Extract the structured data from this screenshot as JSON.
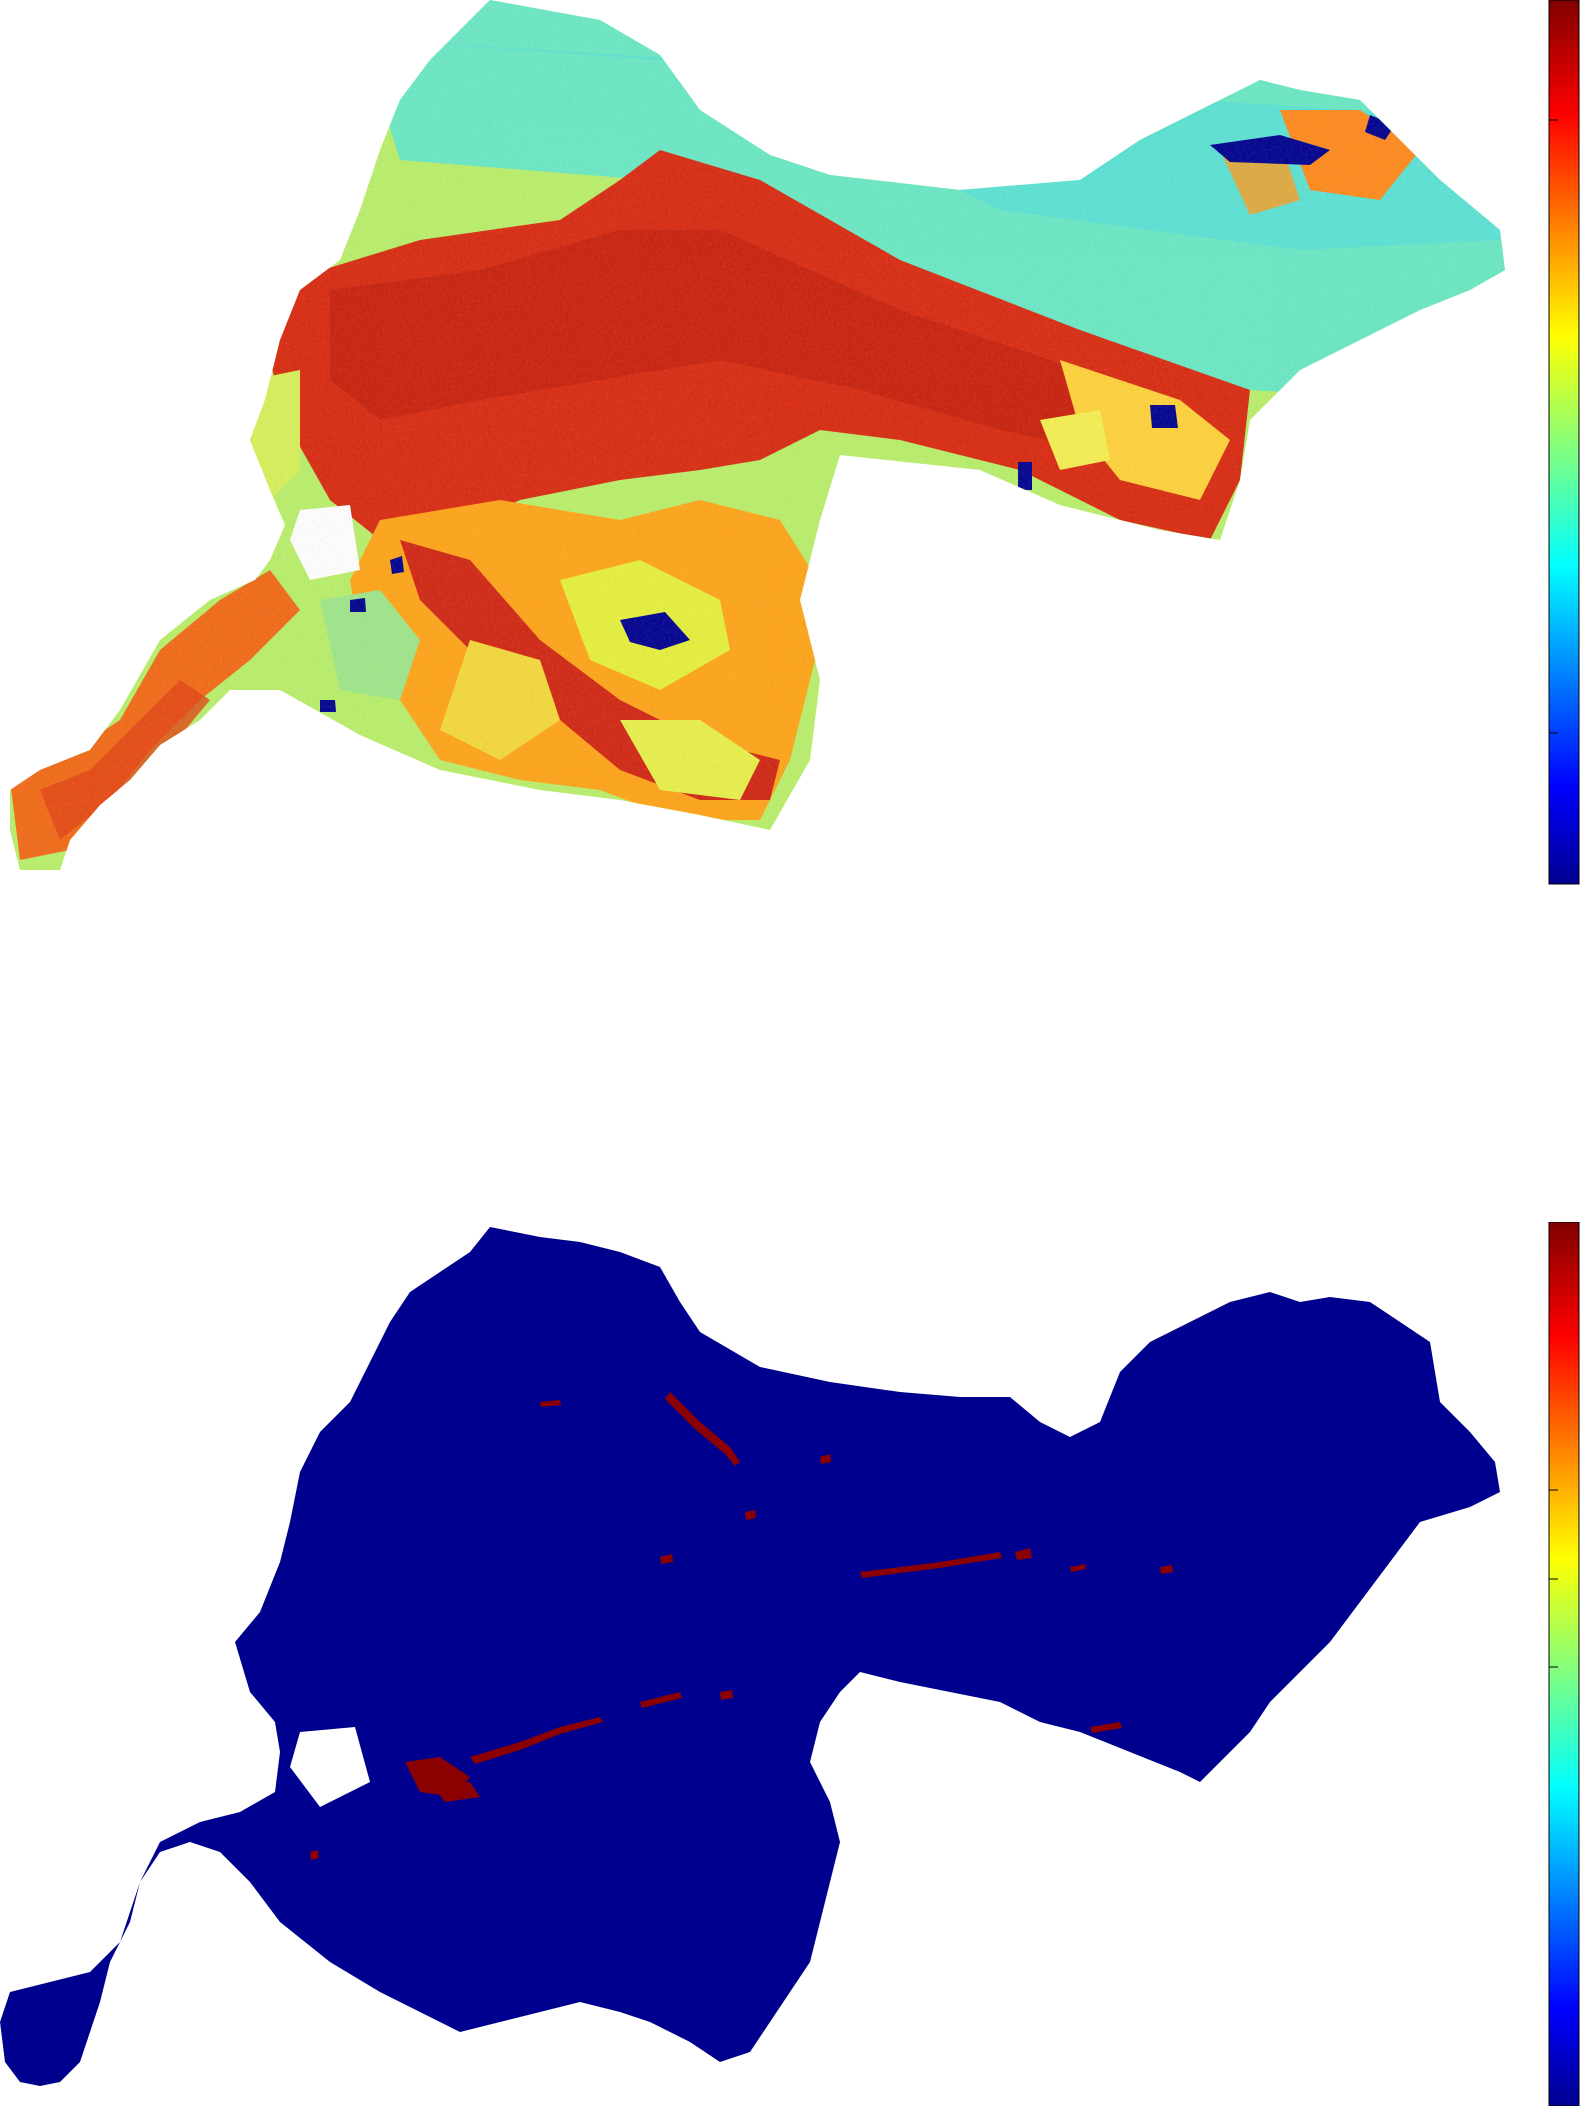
{
  "figure": {
    "panels": [
      {
        "id": "top",
        "description_kind": "continuous raster map",
        "colormap": "jet",
        "colorbar": {
          "orientation": "vertical",
          "side": "right",
          "tick_labels": [],
          "tick_count": 4
        },
        "colors": {
          "background": "#ffffff",
          "water": "#00008f",
          "urban": "#c8200f",
          "high": "#e0320a",
          "mid": "#ffc000",
          "low": "#50e6d0"
        }
      },
      {
        "id": "bottom",
        "description_kind": "binary raster map",
        "colormap": "jet",
        "colorbar": {
          "orientation": "vertical",
          "side": "right",
          "tick_labels": [],
          "tick_count": 4
        },
        "colors": {
          "background": "#ffffff",
          "fill": "#00008f",
          "highlight": "#8b0000"
        }
      }
    ]
  }
}
